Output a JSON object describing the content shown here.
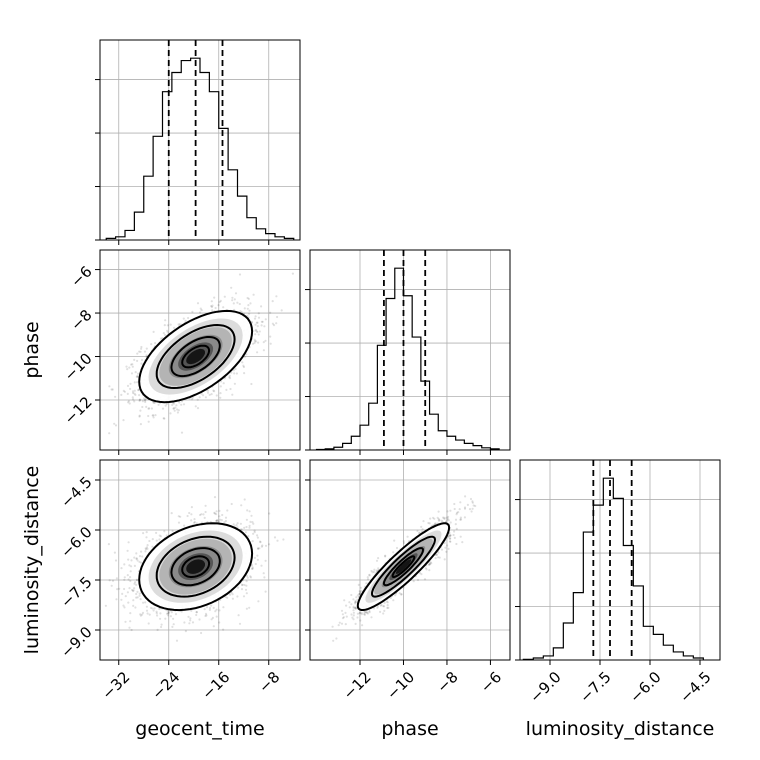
{
  "chart_data": {
    "type": "corner",
    "parameters": [
      "geocent_time",
      "phase",
      "luminosity_distance"
    ],
    "labels": {
      "geocent_time": "geocent_time",
      "phase": "phase",
      "luminosity_distance": "luminosity_distance"
    },
    "ranges": {
      "geocent_time": [
        -35,
        -3
      ],
      "phase": [
        -14.3,
        -5.1
      ],
      "luminosity_distance": [
        -9.9,
        -3.9
      ]
    },
    "ticks": {
      "geocent_time": [
        -32,
        -24,
        -16,
        -8
      ],
      "phase": [
        -12,
        -10,
        -8,
        -6
      ],
      "luminosity_distance": [
        -9.0,
        -7.5,
        -6.0,
        -4.5
      ]
    },
    "tick_labels": {
      "geocent_time": [
        "−32",
        "−24",
        "−16",
        "−8"
      ],
      "phase": [
        "−12",
        "−10",
        "−8",
        "−6"
      ],
      "luminosity_distance": [
        "−9.0",
        "−7.5",
        "−6.0",
        "−4.5"
      ]
    },
    "quantiles": {
      "geocent_time": [
        -24.0,
        -19.7,
        -15.4
      ],
      "phase": [
        -10.9,
        -10.0,
        -9.0
      ],
      "luminosity_distance": [
        -7.7,
        -7.2,
        -6.55
      ]
    },
    "histograms": {
      "geocent_time": {
        "edges": [
          -34,
          -32.5,
          -31,
          -29.5,
          -28,
          -26.5,
          -25,
          -23.5,
          -22,
          -20.5,
          -19,
          -17.5,
          -16,
          -14.5,
          -13,
          -11.5,
          -10,
          -8.5,
          -7,
          -5.5,
          -4
        ],
        "counts": [
          2,
          4,
          12,
          35,
          80,
          130,
          186,
          210,
          225,
          228,
          210,
          186,
          140,
          88,
          55,
          28,
          14,
          8,
          4,
          2
        ]
      },
      "phase": {
        "edges": [
          -14.0,
          -13.6,
          -13.2,
          -12.8,
          -12.4,
          -12.0,
          -11.6,
          -11.2,
          -10.8,
          -10.4,
          -10.0,
          -9.6,
          -9.2,
          -8.8,
          -8.4,
          -8.0,
          -7.6,
          -7.2,
          -6.8,
          -6.4,
          -6.0,
          -5.6
        ],
        "counts": [
          1,
          2,
          5,
          12,
          25,
          45,
          85,
          190,
          275,
          330,
          280,
          205,
          125,
          65,
          35,
          25,
          18,
          12,
          8,
          4,
          2
        ]
      },
      "luminosity_distance": {
        "edges": [
          -9.8,
          -9.5,
          -9.2,
          -8.9,
          -8.6,
          -8.3,
          -8.0,
          -7.7,
          -7.4,
          -7.1,
          -6.8,
          -6.5,
          -6.2,
          -5.9,
          -5.6,
          -5.3,
          -5.0,
          -4.7,
          -4.4
        ],
        "counts": [
          1,
          3,
          6,
          18,
          55,
          100,
          190,
          230,
          270,
          240,
          170,
          110,
          50,
          38,
          22,
          12,
          6,
          3
        ]
      }
    },
    "joint": [
      {
        "x": "geocent_time",
        "y": "phase",
        "mean": [
          -19.7,
          -10.0
        ],
        "sd": [
          4.3,
          1.0
        ],
        "corr": 0.55
      },
      {
        "x": "geocent_time",
        "y": "luminosity_distance",
        "mean": [
          -19.7,
          -7.1
        ],
        "sd": [
          4.3,
          0.62
        ],
        "corr": 0.3
      },
      {
        "x": "phase",
        "y": "luminosity_distance",
        "mean": [
          -10.0,
          -7.1
        ],
        "sd": [
          1.0,
          0.62
        ],
        "corr": 0.9
      }
    ],
    "grid": true
  }
}
